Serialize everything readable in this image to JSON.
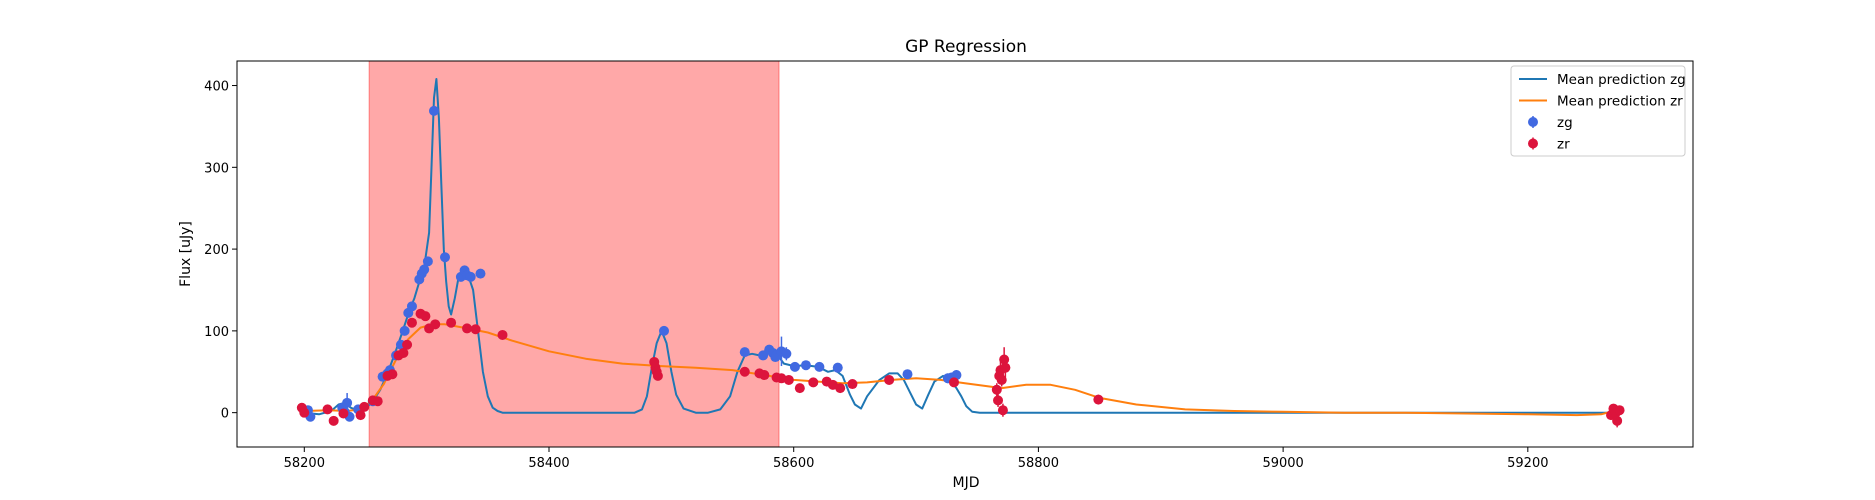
{
  "chart_data": {
    "type": "line",
    "title": "GP Regression",
    "xlabel": "MJD",
    "ylabel": "Flux [uJy]",
    "xlim": [
      58145,
      59335
    ],
    "ylim": [
      -42,
      430
    ],
    "x_ticks": [
      58200,
      58400,
      58600,
      58800,
      59000,
      59200
    ],
    "y_ticks": [
      0,
      100,
      200,
      300,
      400
    ],
    "grid": false,
    "legend": {
      "position": "top-right"
    },
    "shaded_region": {
      "x_start": 58253,
      "x_end": 58588,
      "color": "#ff0000",
      "opacity": 0.34
    },
    "series": [
      {
        "name": "Mean prediction zg",
        "kind": "line",
        "color": "#1f77b4",
        "x": [
          58200,
          58212,
          58222,
          58228,
          58233,
          58238,
          58244,
          58250,
          58256,
          58262,
          58268,
          58274,
          58280,
          58286,
          58290,
          58294,
          58298,
          58302,
          58304,
          58306,
          58308,
          58310,
          58312,
          58314,
          58316,
          58318,
          58320,
          58323,
          58326,
          58330,
          58334,
          58338,
          58342,
          58346,
          58350,
          58354,
          58358,
          58362,
          58366,
          58370,
          58375,
          58380,
          58390,
          58400,
          58420,
          58440,
          58460,
          58470,
          58476,
          58480,
          58484,
          58488,
          58492,
          58496,
          58500,
          58504,
          58510,
          58520,
          58530,
          58540,
          58548,
          58554,
          58560,
          58566,
          58572,
          58576,
          58580,
          58586,
          58592,
          58600,
          58610,
          58620,
          58628,
          58634,
          58640,
          58646,
          58650,
          58655,
          58660,
          58670,
          58678,
          58685,
          58690,
          58695,
          58700,
          58705,
          58710,
          58715,
          58722,
          58728,
          58733,
          58737,
          58741,
          58746,
          58752,
          58760,
          58770,
          58800,
          58900,
          59000,
          59100,
          59200,
          59260,
          59270
        ],
        "y": [
          0,
          -2,
          2,
          10,
          12,
          6,
          2,
          5,
          14,
          28,
          48,
          72,
          98,
          125,
          140,
          160,
          178,
          220,
          300,
          385,
          408,
          360,
          280,
          200,
          160,
          130,
          120,
          140,
          165,
          170,
          168,
          150,
          100,
          50,
          20,
          6,
          2,
          0,
          0,
          0,
          0,
          0,
          0,
          0,
          0,
          0,
          0,
          0,
          4,
          20,
          55,
          85,
          100,
          85,
          50,
          22,
          5,
          0,
          0,
          4,
          20,
          50,
          70,
          72,
          70,
          75,
          74,
          72,
          60,
          57,
          58,
          56,
          50,
          52,
          45,
          22,
          10,
          5,
          20,
          40,
          48,
          48,
          40,
          25,
          10,
          5,
          22,
          38,
          45,
          40,
          30,
          20,
          8,
          1,
          0,
          0,
          0,
          0,
          0,
          0,
          0,
          0,
          0,
          0
        ]
      },
      {
        "name": "Mean prediction zr",
        "kind": "line",
        "color": "#ff7f0e",
        "x": [
          58200,
          58220,
          58235,
          58245,
          58255,
          58265,
          58275,
          58285,
          58295,
          58305,
          58315,
          58330,
          58350,
          58370,
          58400,
          58430,
          58460,
          58490,
          58520,
          58550,
          58580,
          58600,
          58620,
          58640,
          58660,
          58680,
          58700,
          58720,
          58740,
          58760,
          58770,
          58790,
          58810,
          58830,
          58850,
          58880,
          58920,
          58960,
          59000,
          59050,
          59100,
          59150,
          59200,
          59240,
          59260,
          59275
        ],
        "y": [
          2,
          3,
          2,
          4,
          14,
          35,
          65,
          90,
          104,
          108,
          108,
          104,
          98,
          88,
          75,
          66,
          60,
          57,
          55,
          52,
          45,
          40,
          38,
          36,
          37,
          40,
          42,
          40,
          36,
          32,
          30,
          34,
          34,
          28,
          18,
          10,
          4,
          2,
          1,
          0,
          0,
          -1,
          -2,
          -3,
          -2,
          4
        ]
      },
      {
        "name": "zg",
        "kind": "scatter",
        "color": "#4169e1",
        "x": [
          58203,
          58205,
          58231,
          58233,
          58235,
          58237,
          58244,
          58256,
          58264,
          58268,
          58270,
          58275,
          58279,
          58282,
          58285,
          58288,
          58294,
          58296,
          58298,
          58301,
          58306,
          58315,
          58328,
          58331,
          58333,
          58336,
          58344,
          58494,
          58560,
          58575,
          58580,
          58583,
          58585,
          58586,
          58590,
          58594,
          58601,
          58610,
          58621,
          58636,
          58693,
          58726,
          58729,
          58733
        ],
        "y": [
          3,
          -5,
          6,
          1,
          12,
          -5,
          4,
          14,
          44,
          48,
          52,
          70,
          83,
          100,
          122,
          130,
          163,
          170,
          175,
          185,
          369,
          190,
          166,
          174,
          168,
          166,
          170,
          100,
          74,
          70,
          77,
          73,
          68,
          70,
          75,
          72,
          56,
          58,
          56,
          55,
          47,
          42,
          43,
          46
        ],
        "yerr": [
          2,
          3,
          3,
          3,
          12,
          3,
          2,
          2,
          3,
          3,
          3,
          3,
          3,
          3,
          3,
          3,
          3,
          3,
          3,
          3,
          3,
          3,
          3,
          3,
          3,
          3,
          3,
          3,
          3,
          3,
          3,
          3,
          3,
          3,
          18,
          8,
          4,
          3,
          3,
          3,
          3,
          6,
          6,
          6
        ]
      },
      {
        "name": "zr",
        "kind": "scatter",
        "color": "#dc143c",
        "x": [
          58198,
          58200,
          58219,
          58224,
          58232,
          58246,
          58249,
          58256,
          58260,
          58268,
          58272,
          58277,
          58281,
          58284,
          58288,
          58295,
          58299,
          58302,
          58307,
          58320,
          58333,
          58340,
          58362,
          58486,
          58487,
          58488,
          58489,
          58560,
          58572,
          58576,
          58586,
          58590,
          58596,
          58605,
          58616,
          58627,
          58632,
          58638,
          58648,
          58678,
          58731,
          58766,
          58767,
          58768,
          58769,
          58770,
          58771,
          58772,
          58773,
          58849,
          59268,
          59270,
          59272,
          59273,
          59275
        ],
        "y": [
          6,
          0,
          4,
          -10,
          -1,
          -3,
          7,
          15,
          14,
          45,
          47,
          70,
          73,
          83,
          110,
          121,
          118,
          103,
          108,
          110,
          103,
          102,
          95,
          62,
          55,
          50,
          45,
          50,
          48,
          46,
          43,
          42,
          40,
          30,
          37,
          38,
          34,
          30,
          35,
          40,
          37,
          28,
          15,
          45,
          52,
          40,
          3,
          65,
          55,
          16,
          -3,
          5,
          0,
          -10,
          3
        ],
        "yerr": [
          3,
          3,
          3,
          3,
          4,
          3,
          3,
          3,
          3,
          3,
          3,
          3,
          3,
          3,
          3,
          3,
          3,
          3,
          3,
          3,
          3,
          3,
          3,
          6,
          5,
          5,
          5,
          3,
          3,
          3,
          3,
          3,
          3,
          3,
          3,
          3,
          3,
          3,
          3,
          3,
          3,
          8,
          8,
          10,
          10,
          8,
          8,
          15,
          12,
          6,
          5,
          5,
          5,
          8,
          5
        ]
      }
    ]
  }
}
